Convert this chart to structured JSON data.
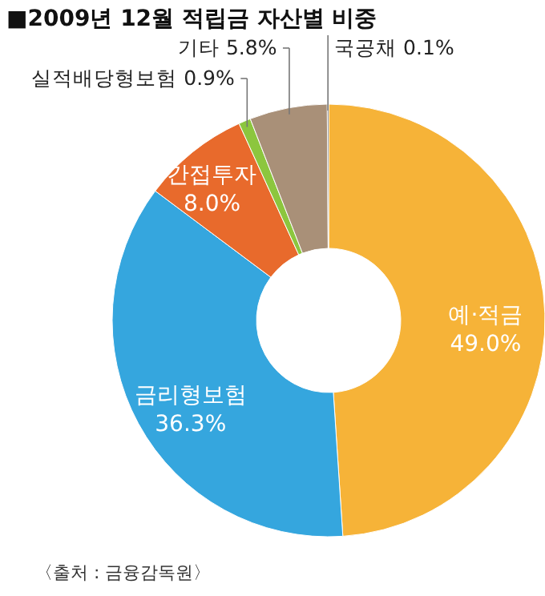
{
  "chart_data": {
    "type": "donut",
    "title": "■2009년 12월 적립금 자산별 비중",
    "categories": [
      "예·적금",
      "금리형보험",
      "간접투자",
      "실적배당형보험",
      "기타",
      "국공채"
    ],
    "values": [
      49.0,
      36.3,
      8.0,
      0.9,
      5.8,
      0.1
    ],
    "value_labels": [
      "49.0%",
      "36.3%",
      "8.0%",
      "0.9%",
      "5.8%",
      "0.1%"
    ],
    "colors": [
      "#f6b338",
      "#35a6de",
      "#e86a2c",
      "#8cc63e",
      "#a99078",
      "#2e2a28"
    ],
    "annotations": [
      "〈출처 : 금융감독원〉"
    ]
  }
}
